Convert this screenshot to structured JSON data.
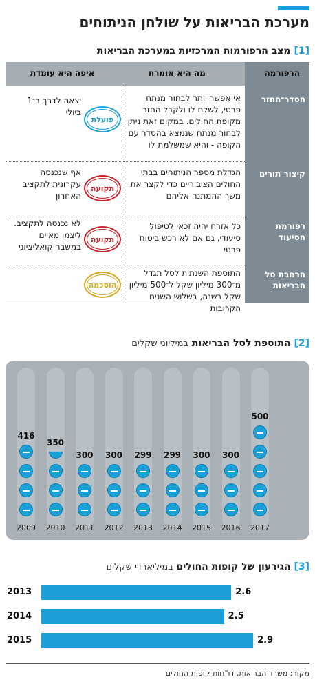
{
  "header": {
    "title": "מערכת הבריאות על שולחן הניתוחים"
  },
  "section1": {
    "num": "[1]",
    "title": "מצב הרפורמות המרכזיות במערכת הבריאות",
    "headers": {
      "reform": "הרפורמה",
      "says": "מה היא אומרת",
      "status": "איפה היא עומדת"
    },
    "rows": [
      {
        "reform": "הסדר־החזר",
        "says": "אי אפשר יותר לבחור מנתח פרטי, לשלם לו ולקבל החזר מקופת החולים. במקום זאת ניתן לבחור מנתח שנמצא בהסדר עם הקופה - והיא שמשלמת לו",
        "badge": "פועלת",
        "badge_color": "#1aa0d6",
        "status": "יצאה לדרך ב־1 ביולי"
      },
      {
        "reform": "קיצור תורים",
        "says": "הגדלת מספר הניתוחים בבתי החולים הציבוריים כדי לקצר את משך ההמתנה אליהם",
        "badge": "תקועה",
        "badge_color": "#c9202a",
        "status": "אף שנכנסה עקרונית לתקציב האחרון"
      },
      {
        "reform": "רפורמת הסיעוד",
        "says": "כל אזרח יהיה זכאי לטיפול סיעודי, גם אם לא רכש ביטוח פרטי",
        "badge": "תקועה",
        "badge_color": "#c9202a",
        "status": "לא נכנסה לתקציב. ליצמן מאיים במשבר קואליציוני"
      },
      {
        "reform": "הרחבת סל הבריאות",
        "says": "התוספת השנתית לסל תגדל מ־300 מיליון שקל ל־500 מיליון שקל בשנה, בשלוש השנים הקרובות",
        "badge": "הוסכמה",
        "badge_color": "#d4a91c",
        "status": ""
      }
    ]
  },
  "section2": {
    "num": "[2]",
    "title": "התוספת לסל הבריאות",
    "subtitle": "במיליוני שקלים"
  },
  "section3": {
    "num": "[3]",
    "title": "הגירעון של קופות החולים",
    "subtitle": "במיליארדי שקלים"
  },
  "source": "מקור: משרד הבריאות, דו\"חות קופות החולים",
  "chart_data": [
    {
      "type": "bar",
      "title": "התוספת לסל הבריאות",
      "subtitle": "במיליוני שקלים",
      "categories": [
        "2009",
        "2010",
        "2011",
        "2012",
        "2013",
        "2014",
        "2015",
        "2016",
        "2017"
      ],
      "values": [
        416,
        350,
        300,
        300,
        299,
        299,
        300,
        300,
        500
      ],
      "value_labels": [
        "416",
        "350",
        "300",
        "300",
        "299",
        "299",
        "300",
        "300",
        "500"
      ],
      "ylim": [
        0,
        500
      ],
      "colors": {
        "pill": "#1aa0d6",
        "panel": "#a9b1b6"
      }
    },
    {
      "type": "bar",
      "orientation": "horizontal",
      "title": "הגירעון של קופות החולים",
      "subtitle": "במיליארדי שקלים",
      "categories": [
        "2013",
        "2014",
        "2015"
      ],
      "values": [
        2.6,
        2.5,
        2.9
      ],
      "value_labels": [
        "2.6",
        "2.5",
        "2.9"
      ],
      "xlim": [
        0,
        3.2
      ],
      "colors": {
        "bar": "#1aa0d6"
      }
    }
  ]
}
